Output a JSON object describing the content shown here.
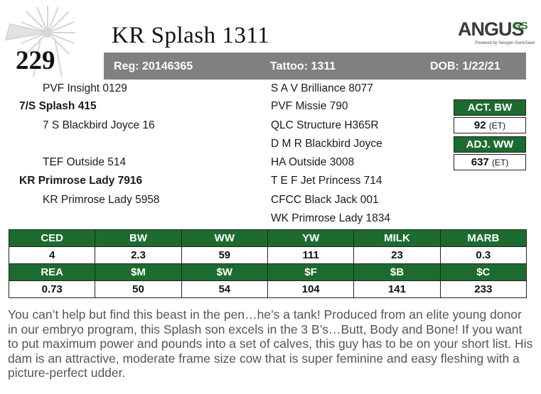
{
  "lot_number": "229",
  "animal_name": "KR Splash 1311",
  "logo": {
    "word": "ANGUS",
    "suffix": "GS",
    "tagline": "Powered by Neogen GeneSeek"
  },
  "reg_bar": {
    "reg": "Reg: 20146365",
    "tattoo": "Tattoo: 1311",
    "dob": "DOB: 1/22/21"
  },
  "pedigree": {
    "sire_sire": "PVF Insight 0129",
    "sire": "7/S Splash 415",
    "sire_dam": "7 S Blackbird Joyce 16",
    "dam_sire": "TEF Outside 514",
    "dam": "KR Primrose Lady 7916",
    "dam_dam": "KR Primrose Lady 5958",
    "col2": [
      "S A V Brilliance 8077",
      "PVF Missie 790",
      "QLC Structure H365R",
      "D M R Blackbird Joyce",
      "HA Outside 3008",
      "T E F Jet Princess 714",
      "CFCC Black Jack 001",
      "WK Primrose Lady 1834"
    ]
  },
  "weights": {
    "act_bw_label": "ACT. BW",
    "act_bw_value": "92",
    "act_bw_note": "(ET)",
    "adj_ww_label": "ADJ. WW",
    "adj_ww_value": "637",
    "adj_ww_note": "(ET)"
  },
  "epds": {
    "row1_headers": [
      "CED",
      "BW",
      "WW",
      "YW",
      "MILK",
      "MARB"
    ],
    "row1_values": [
      "4",
      "2.3",
      "59",
      "111",
      "23",
      "0.3"
    ],
    "row2_headers": [
      "REA",
      "$M",
      "$W",
      "$F",
      "$B",
      "$C"
    ],
    "row2_values": [
      "0.73",
      "50",
      "54",
      "104",
      "141",
      "233"
    ]
  },
  "description": "You can’t help but find this beast in the pen…he’s a tank! Produced from an elite young donor in our embryo program, this Splash son excels in the 3 B’s…Butt, Body and Bone! If you want to put maximum power and pounds into a set of calves, this guy has to be on your short list. His dam is an attractive, moderate frame size cow that is super feminine and easy fleshing with a picture-perfect udder.",
  "colors": {
    "green": "#1d6b2f",
    "gray_bar": "#808080",
    "logo_green": "#2e7d32"
  }
}
